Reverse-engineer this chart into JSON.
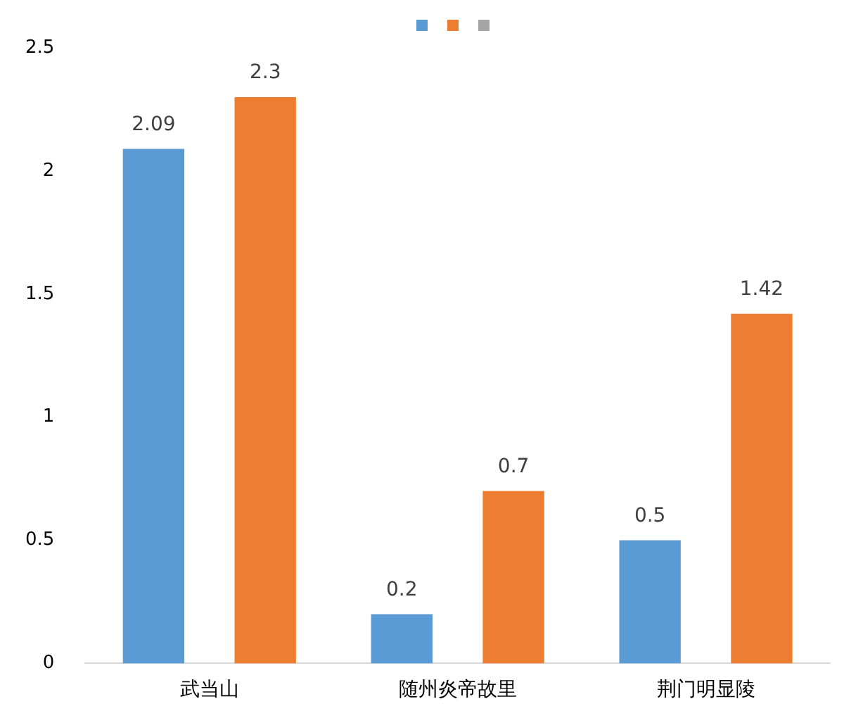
{
  "chart_data": {
    "type": "bar",
    "categories": [
      "武当山",
      "随州炎帝故里",
      "荆门明显陵"
    ],
    "series": [
      {
        "color": "#5b9bd5",
        "values": [
          2.09,
          0.2,
          0.5
        ]
      },
      {
        "color": "#ed7d31",
        "values": [
          2.3,
          0.7,
          1.42
        ]
      }
    ],
    "ylim": [
      0,
      2.5
    ],
    "yticks": [
      0,
      0.5,
      1,
      1.5,
      2,
      2.5
    ],
    "grid": false,
    "data_labels": true
  }
}
